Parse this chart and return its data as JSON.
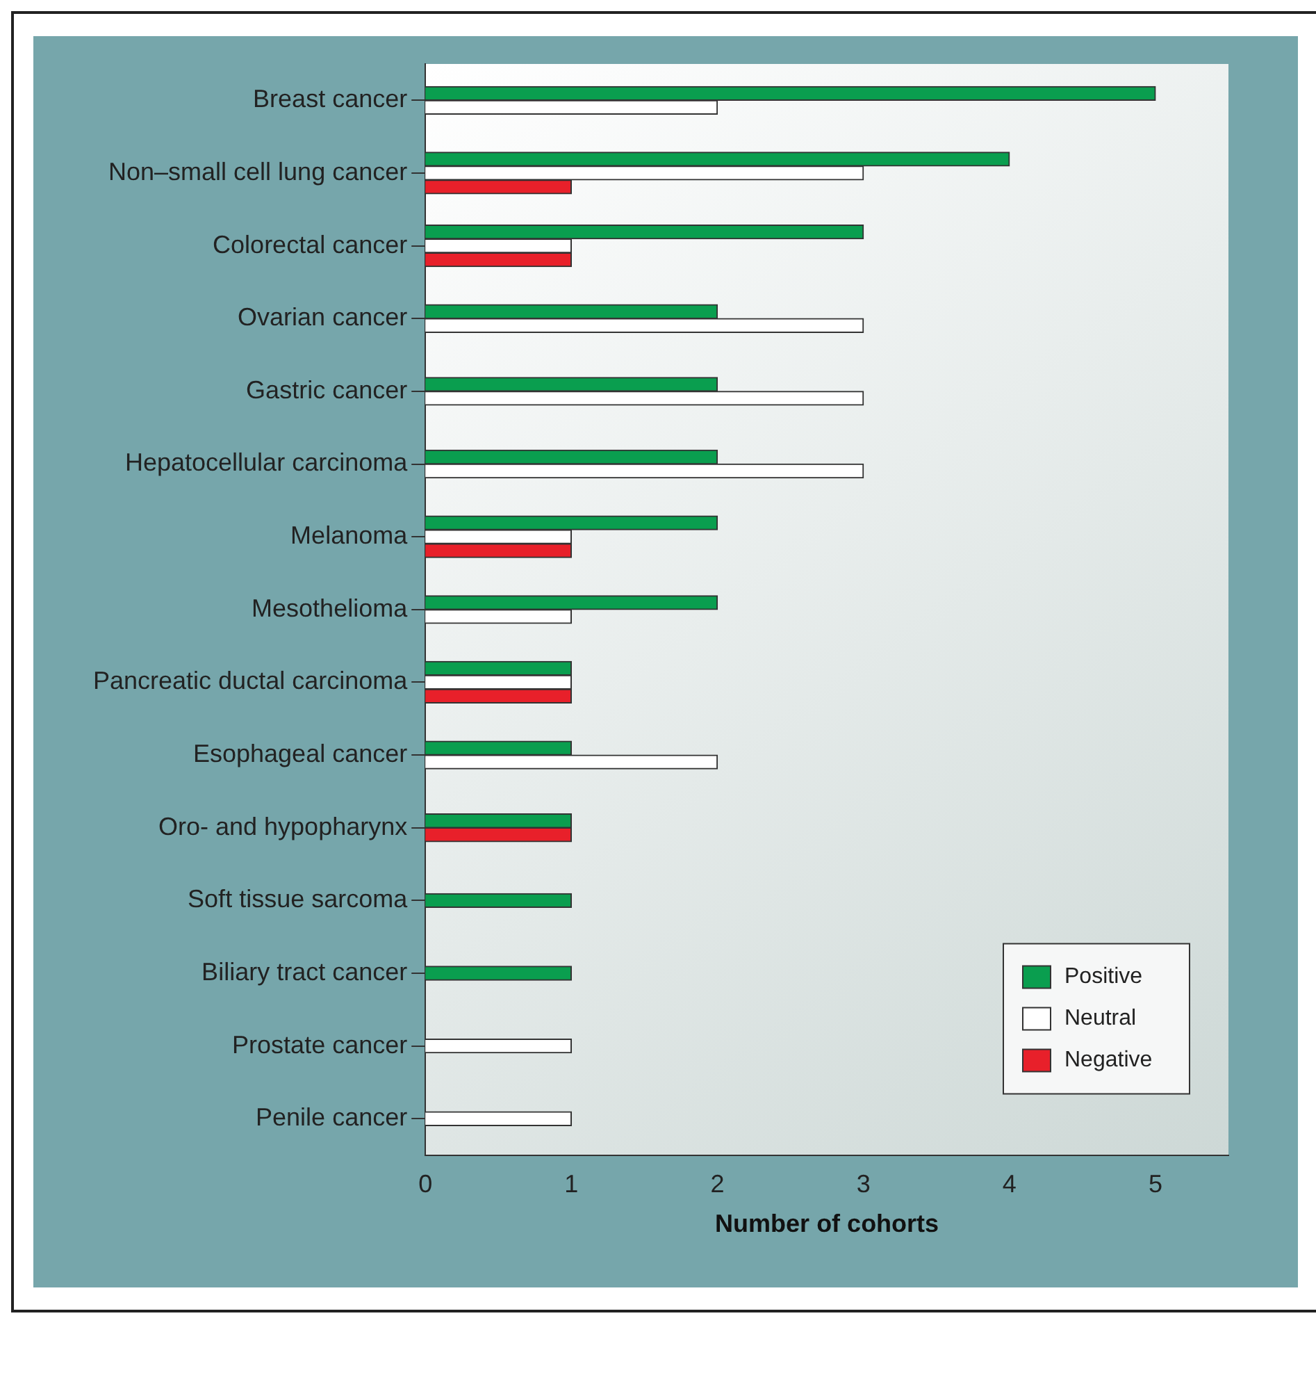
{
  "chart_data": {
    "type": "bar",
    "orientation": "horizontal",
    "xlabel": "Number of cohorts",
    "categories": [
      "Breast cancer",
      "Non–small cell lung cancer",
      "Colorectal cancer",
      "Ovarian cancer",
      "Gastric cancer",
      "Hepatocellular carcinoma",
      "Melanoma",
      "Mesothelioma",
      "Pancreatic ductal carcinoma",
      "Esophageal cancer",
      "Oro- and hypopharynx",
      "Soft tissue sarcoma",
      "Biliary tract cancer",
      "Prostate cancer",
      "Penile cancer"
    ],
    "series": [
      {
        "name": "Positive",
        "color": "#0a9e4f",
        "values": [
          5,
          4,
          3,
          2,
          2,
          2,
          2,
          2,
          1,
          1,
          1,
          1,
          1,
          null,
          null
        ]
      },
      {
        "name": "Neutral",
        "color": "#ffffff",
        "values": [
          2,
          3,
          1,
          3,
          3,
          3,
          1,
          1,
          1,
          2,
          null,
          null,
          null,
          1,
          1
        ]
      },
      {
        "name": "Negative",
        "color": "#e8202a",
        "values": [
          null,
          1,
          1,
          null,
          null,
          null,
          1,
          null,
          1,
          null,
          1,
          null,
          null,
          null,
          null
        ]
      }
    ],
    "xlim": [
      0,
      5.5
    ],
    "xticks": [
      0,
      1,
      2,
      3,
      4,
      5
    ],
    "grid": false,
    "legend": "bottom right"
  }
}
